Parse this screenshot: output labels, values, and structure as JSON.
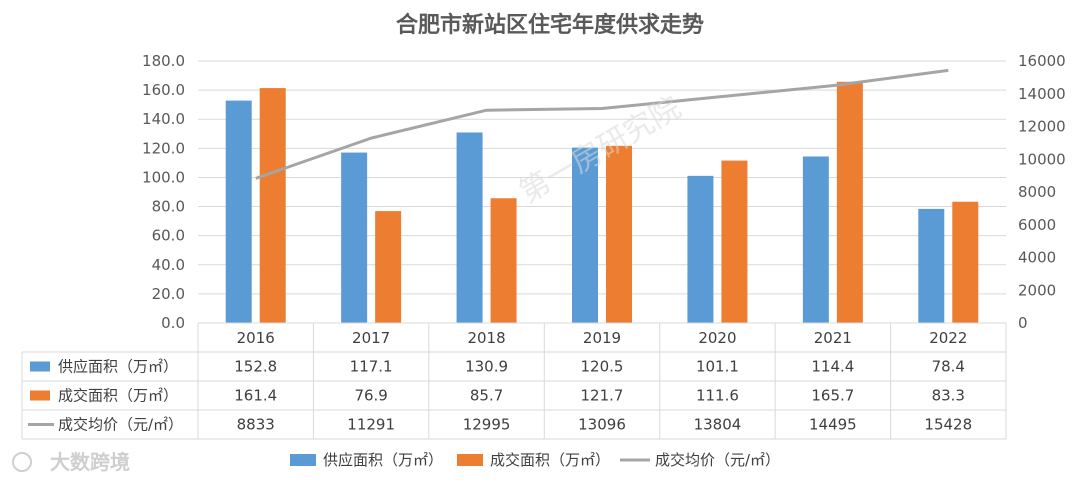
{
  "chart_data": {
    "type": "bar",
    "title": "合肥市新站区住宅年度供求走势",
    "categories": [
      "2016",
      "2017",
      "2018",
      "2019",
      "2020",
      "2021",
      "2022"
    ],
    "series": [
      {
        "name": "供应面积（万㎡）",
        "kind": "bar",
        "axis": "left",
        "color": "#5b9bd5",
        "values": [
          152.8,
          117.1,
          130.9,
          120.5,
          101.1,
          114.4,
          78.4
        ],
        "labels": [
          "152.8",
          "117.1",
          "130.9",
          "120.5",
          "101.1",
          "114.4",
          "78.4"
        ]
      },
      {
        "name": "成交面积（万㎡）",
        "kind": "bar",
        "axis": "left",
        "color": "#ed7d31",
        "values": [
          161.4,
          76.9,
          85.7,
          121.7,
          111.6,
          165.7,
          83.3
        ],
        "labels": [
          "161.4",
          "76.9",
          "85.7",
          "121.7",
          "111.6",
          "165.7",
          "83.3"
        ]
      },
      {
        "name": "成交均价（元/㎡）",
        "kind": "line",
        "axis": "right",
        "color": "#a5a5a5",
        "values": [
          8833,
          11291,
          12995,
          13096,
          13804,
          14495,
          15428
        ],
        "labels": [
          "8833",
          "11291",
          "12995",
          "13096",
          "13804",
          "14495",
          "15428"
        ]
      }
    ],
    "y_left": {
      "min": 0,
      "max": 180,
      "ticks": [
        "0.0",
        "20.0",
        "40.0",
        "60.0",
        "80.0",
        "100.0",
        "120.0",
        "140.0",
        "160.0",
        "180.0"
      ]
    },
    "y_right": {
      "min": 0,
      "max": 16000,
      "ticks": [
        "0",
        "2000",
        "4000",
        "6000",
        "8000",
        "10000",
        "12000",
        "14000",
        "16000"
      ]
    },
    "data_table": true,
    "legend_position": "bottom"
  },
  "watermark": "第一房研究院",
  "brand": "大数跨境"
}
